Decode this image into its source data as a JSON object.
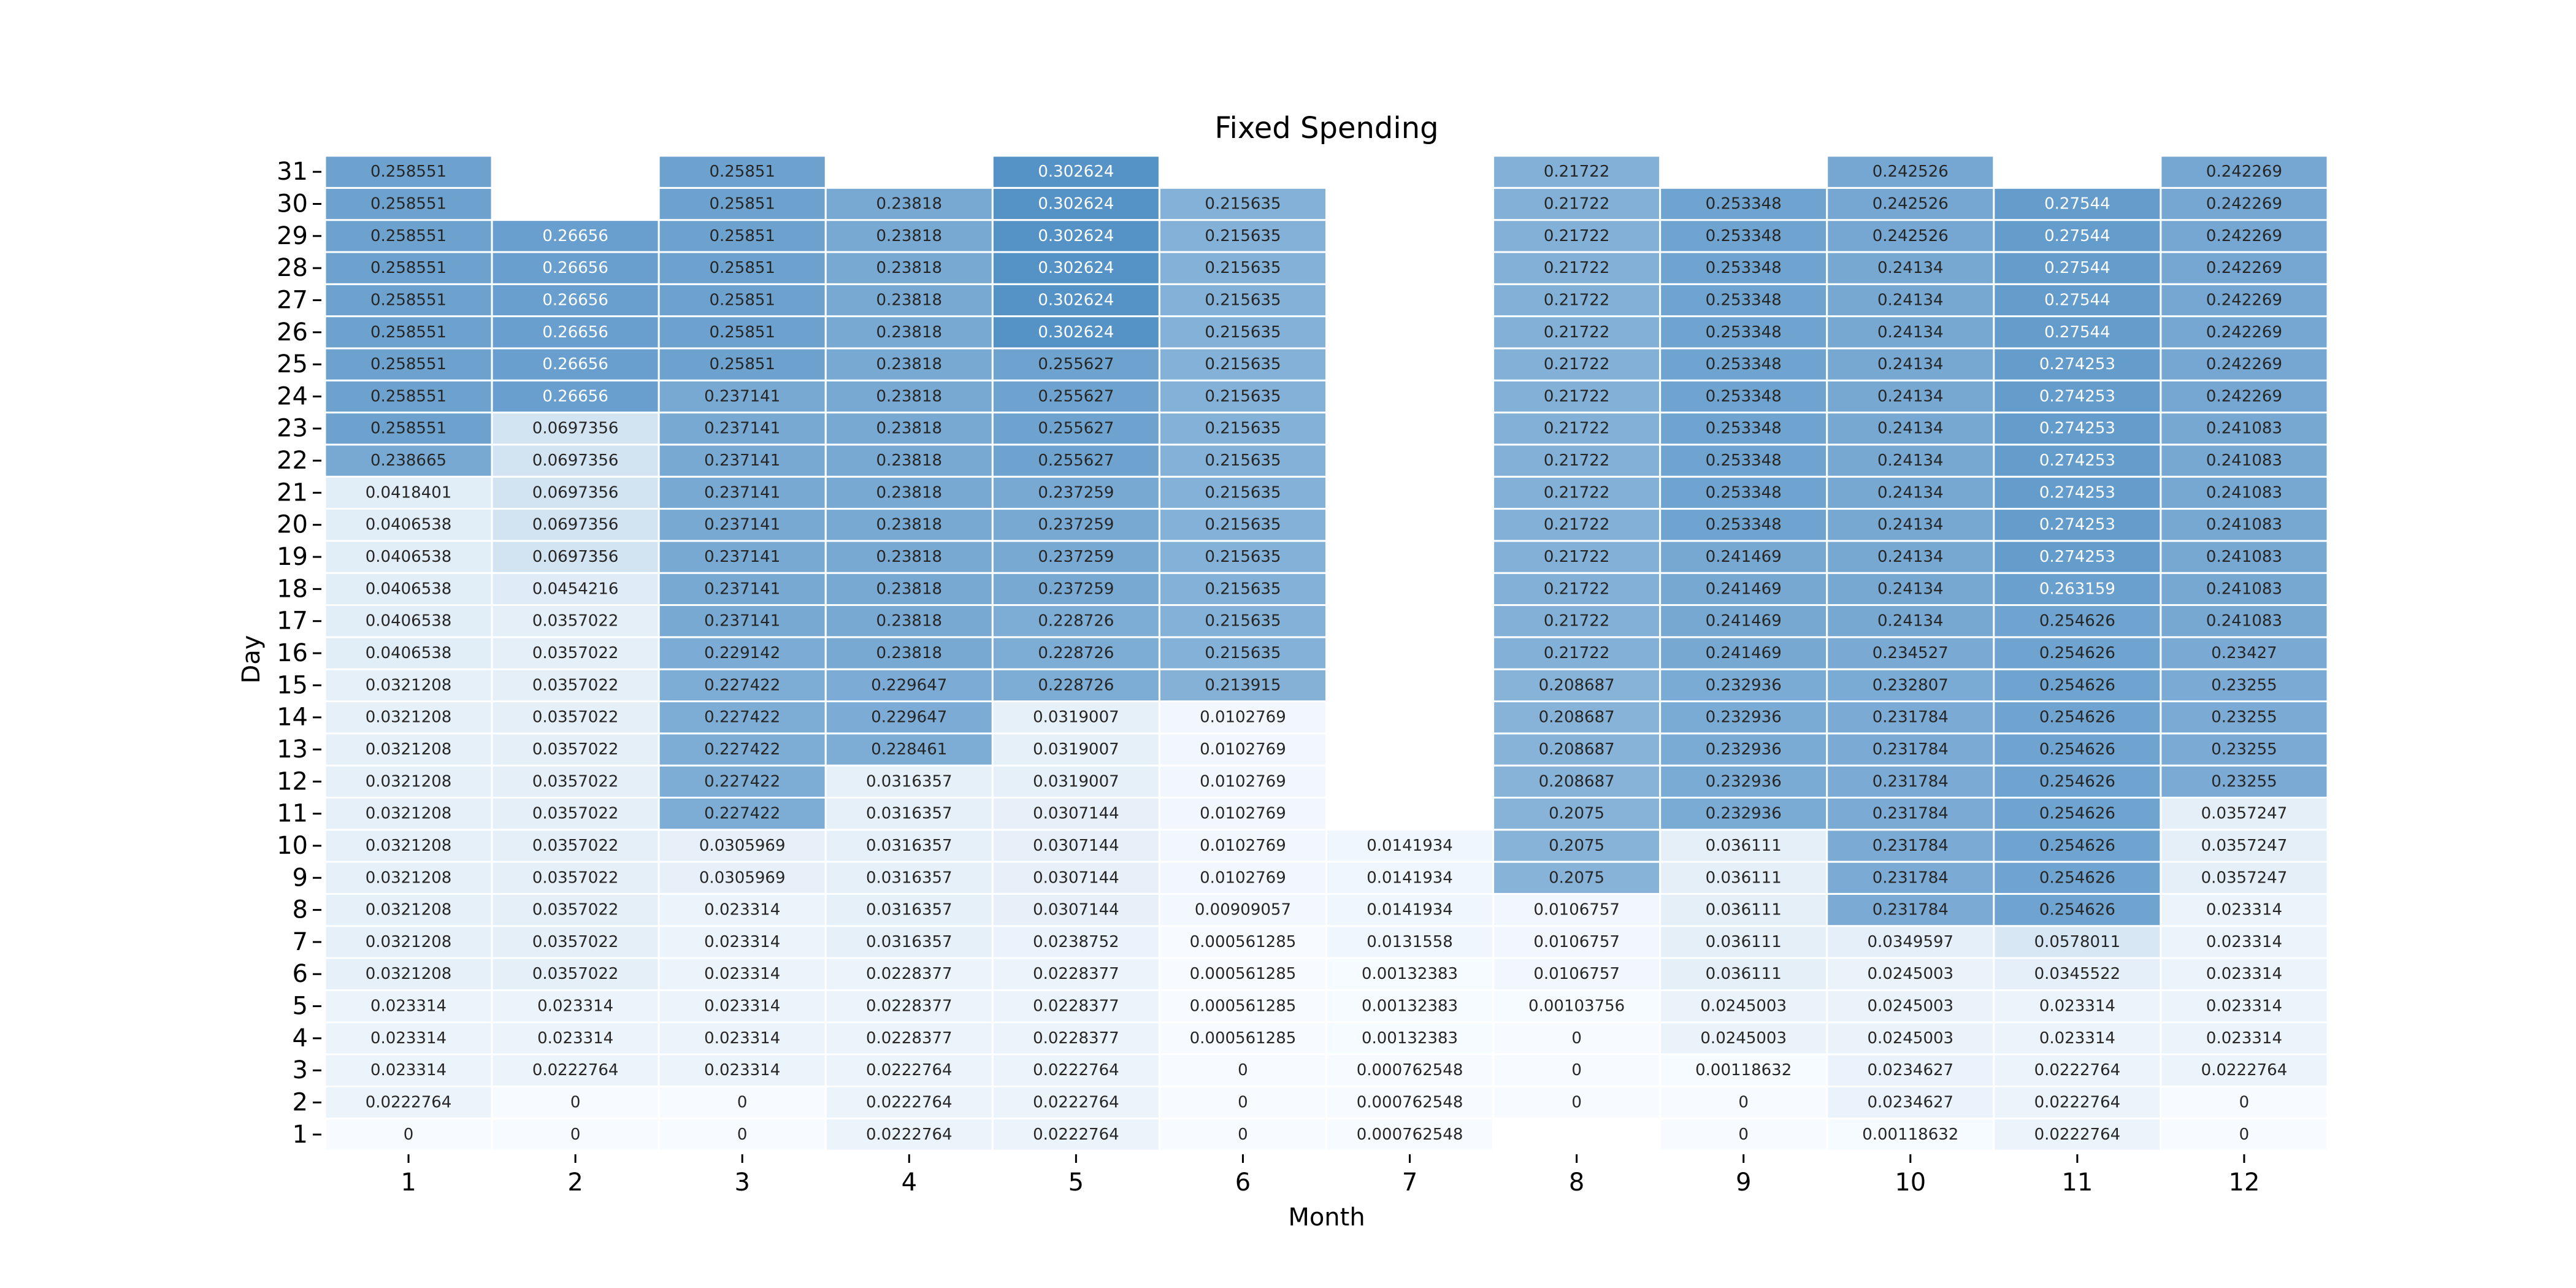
{
  "chart_data": {
    "type": "heatmap",
    "title": "Fixed Spending",
    "xlabel": "Month",
    "ylabel": "Day",
    "x_categories": [
      "1",
      "2",
      "3",
      "4",
      "5",
      "6",
      "7",
      "8",
      "9",
      "10",
      "11",
      "12"
    ],
    "y_categories": [
      "1",
      "2",
      "3",
      "4",
      "5",
      "6",
      "7",
      "8",
      "9",
      "10",
      "11",
      "12",
      "13",
      "14",
      "15",
      "16",
      "17",
      "18",
      "19",
      "20",
      "21",
      "22",
      "23",
      "24",
      "25",
      "26",
      "27",
      "28",
      "29",
      "30",
      "31"
    ],
    "color_scale": {
      "low": "#f7fbff",
      "high": "#2171b5",
      "vmin": 0,
      "vmax": 0.4
    },
    "grid": "white cell borders",
    "values": [
      [
        "0",
        "0",
        "0",
        "0.0222764",
        "0.0222764",
        "0",
        "0.000762548",
        null,
        "0",
        "0.00118632",
        "0.0222764",
        "0"
      ],
      [
        "0.0222764",
        "0",
        "0",
        "0.0222764",
        "0.0222764",
        "0",
        "0.000762548",
        "0",
        "0",
        "0.0234627",
        "0.0222764",
        "0"
      ],
      [
        "0.023314",
        "0.0222764",
        "0.023314",
        "0.0222764",
        "0.0222764",
        "0",
        "0.000762548",
        "0",
        "0.00118632",
        "0.0234627",
        "0.0222764",
        "0.0222764"
      ],
      [
        "0.023314",
        "0.023314",
        "0.023314",
        "0.0228377",
        "0.0228377",
        "0.000561285",
        "0.00132383",
        "0",
        "0.0245003",
        "0.0245003",
        "0.023314",
        "0.023314"
      ],
      [
        "0.023314",
        "0.023314",
        "0.023314",
        "0.0228377",
        "0.0228377",
        "0.000561285",
        "0.00132383",
        "0.00103756",
        "0.0245003",
        "0.0245003",
        "0.023314",
        "0.023314"
      ],
      [
        "0.0321208",
        "0.0357022",
        "0.023314",
        "0.0228377",
        "0.0228377",
        "0.000561285",
        "0.00132383",
        "0.0106757",
        "0.036111",
        "0.0245003",
        "0.0345522",
        "0.023314"
      ],
      [
        "0.0321208",
        "0.0357022",
        "0.023314",
        "0.0316357",
        "0.0238752",
        "0.000561285",
        "0.0131558",
        "0.0106757",
        "0.036111",
        "0.0349597",
        "0.0578011",
        "0.023314"
      ],
      [
        "0.0321208",
        "0.0357022",
        "0.023314",
        "0.0316357",
        "0.0307144",
        "0.00909057",
        "0.0141934",
        "0.0106757",
        "0.036111",
        "0.231784",
        "0.254626",
        "0.023314"
      ],
      [
        "0.0321208",
        "0.0357022",
        "0.0305969",
        "0.0316357",
        "0.0307144",
        "0.0102769",
        "0.0141934",
        "0.2075",
        "0.036111",
        "0.231784",
        "0.254626",
        "0.0357247"
      ],
      [
        "0.0321208",
        "0.0357022",
        "0.0305969",
        "0.0316357",
        "0.0307144",
        "0.0102769",
        "0.0141934",
        "0.2075",
        "0.036111",
        "0.231784",
        "0.254626",
        "0.0357247"
      ],
      [
        "0.0321208",
        "0.0357022",
        "0.227422",
        "0.0316357",
        "0.0307144",
        "0.0102769",
        null,
        "0.2075",
        "0.232936",
        "0.231784",
        "0.254626",
        "0.0357247"
      ],
      [
        "0.0321208",
        "0.0357022",
        "0.227422",
        "0.0316357",
        "0.0319007",
        "0.0102769",
        null,
        "0.208687",
        "0.232936",
        "0.231784",
        "0.254626",
        "0.23255"
      ],
      [
        "0.0321208",
        "0.0357022",
        "0.227422",
        "0.228461",
        "0.0319007",
        "0.0102769",
        null,
        "0.208687",
        "0.232936",
        "0.231784",
        "0.254626",
        "0.23255"
      ],
      [
        "0.0321208",
        "0.0357022",
        "0.227422",
        "0.229647",
        "0.0319007",
        "0.0102769",
        null,
        "0.208687",
        "0.232936",
        "0.231784",
        "0.254626",
        "0.23255"
      ],
      [
        "0.0321208",
        "0.0357022",
        "0.227422",
        "0.229647",
        "0.228726",
        "0.213915",
        null,
        "0.208687",
        "0.232936",
        "0.232807",
        "0.254626",
        "0.23255"
      ],
      [
        "0.0406538",
        "0.0357022",
        "0.229142",
        "0.23818",
        "0.228726",
        "0.215635",
        null,
        "0.21722",
        "0.241469",
        "0.234527",
        "0.254626",
        "0.23427"
      ],
      [
        "0.0406538",
        "0.0357022",
        "0.237141",
        "0.23818",
        "0.228726",
        "0.215635",
        null,
        "0.21722",
        "0.241469",
        "0.24134",
        "0.254626",
        "0.241083"
      ],
      [
        "0.0406538",
        "0.0454216",
        "0.237141",
        "0.23818",
        "0.237259",
        "0.215635",
        null,
        "0.21722",
        "0.241469",
        "0.24134",
        "0.263159",
        "0.241083"
      ],
      [
        "0.0406538",
        "0.0697356",
        "0.237141",
        "0.23818",
        "0.237259",
        "0.215635",
        null,
        "0.21722",
        "0.241469",
        "0.24134",
        "0.274253",
        "0.241083"
      ],
      [
        "0.0406538",
        "0.0697356",
        "0.237141",
        "0.23818",
        "0.237259",
        "0.215635",
        null,
        "0.21722",
        "0.253348",
        "0.24134",
        "0.274253",
        "0.241083"
      ],
      [
        "0.0418401",
        "0.0697356",
        "0.237141",
        "0.23818",
        "0.237259",
        "0.215635",
        null,
        "0.21722",
        "0.253348",
        "0.24134",
        "0.274253",
        "0.241083"
      ],
      [
        "0.238665",
        "0.0697356",
        "0.237141",
        "0.23818",
        "0.255627",
        "0.215635",
        null,
        "0.21722",
        "0.253348",
        "0.24134",
        "0.274253",
        "0.241083"
      ],
      [
        "0.258551",
        "0.0697356",
        "0.237141",
        "0.23818",
        "0.255627",
        "0.215635",
        null,
        "0.21722",
        "0.253348",
        "0.24134",
        "0.274253",
        "0.241083"
      ],
      [
        "0.258551",
        "0.26656",
        "0.237141",
        "0.23818",
        "0.255627",
        "0.215635",
        null,
        "0.21722",
        "0.253348",
        "0.24134",
        "0.274253",
        "0.242269"
      ],
      [
        "0.258551",
        "0.26656",
        "0.25851",
        "0.23818",
        "0.255627",
        "0.215635",
        null,
        "0.21722",
        "0.253348",
        "0.24134",
        "0.274253",
        "0.242269"
      ],
      [
        "0.258551",
        "0.26656",
        "0.25851",
        "0.23818",
        "0.302624",
        "0.215635",
        null,
        "0.21722",
        "0.253348",
        "0.24134",
        "0.27544",
        "0.242269"
      ],
      [
        "0.258551",
        "0.26656",
        "0.25851",
        "0.23818",
        "0.302624",
        "0.215635",
        null,
        "0.21722",
        "0.253348",
        "0.24134",
        "0.27544",
        "0.242269"
      ],
      [
        "0.258551",
        "0.26656",
        "0.25851",
        "0.23818",
        "0.302624",
        "0.215635",
        null,
        "0.21722",
        "0.253348",
        "0.24134",
        "0.27544",
        "0.242269"
      ],
      [
        "0.258551",
        "0.26656",
        "0.25851",
        "0.23818",
        "0.302624",
        "0.215635",
        null,
        "0.21722",
        "0.253348",
        "0.242526",
        "0.27544",
        "0.242269"
      ],
      [
        "0.258551",
        null,
        "0.25851",
        "0.23818",
        "0.302624",
        "0.215635",
        null,
        "0.21722",
        "0.253348",
        "0.242526",
        "0.27544",
        "0.242269"
      ],
      [
        "0.258551",
        null,
        "0.25851",
        null,
        "0.302624",
        null,
        null,
        "0.21722",
        null,
        "0.242526",
        null,
        "0.242269"
      ]
    ]
  }
}
